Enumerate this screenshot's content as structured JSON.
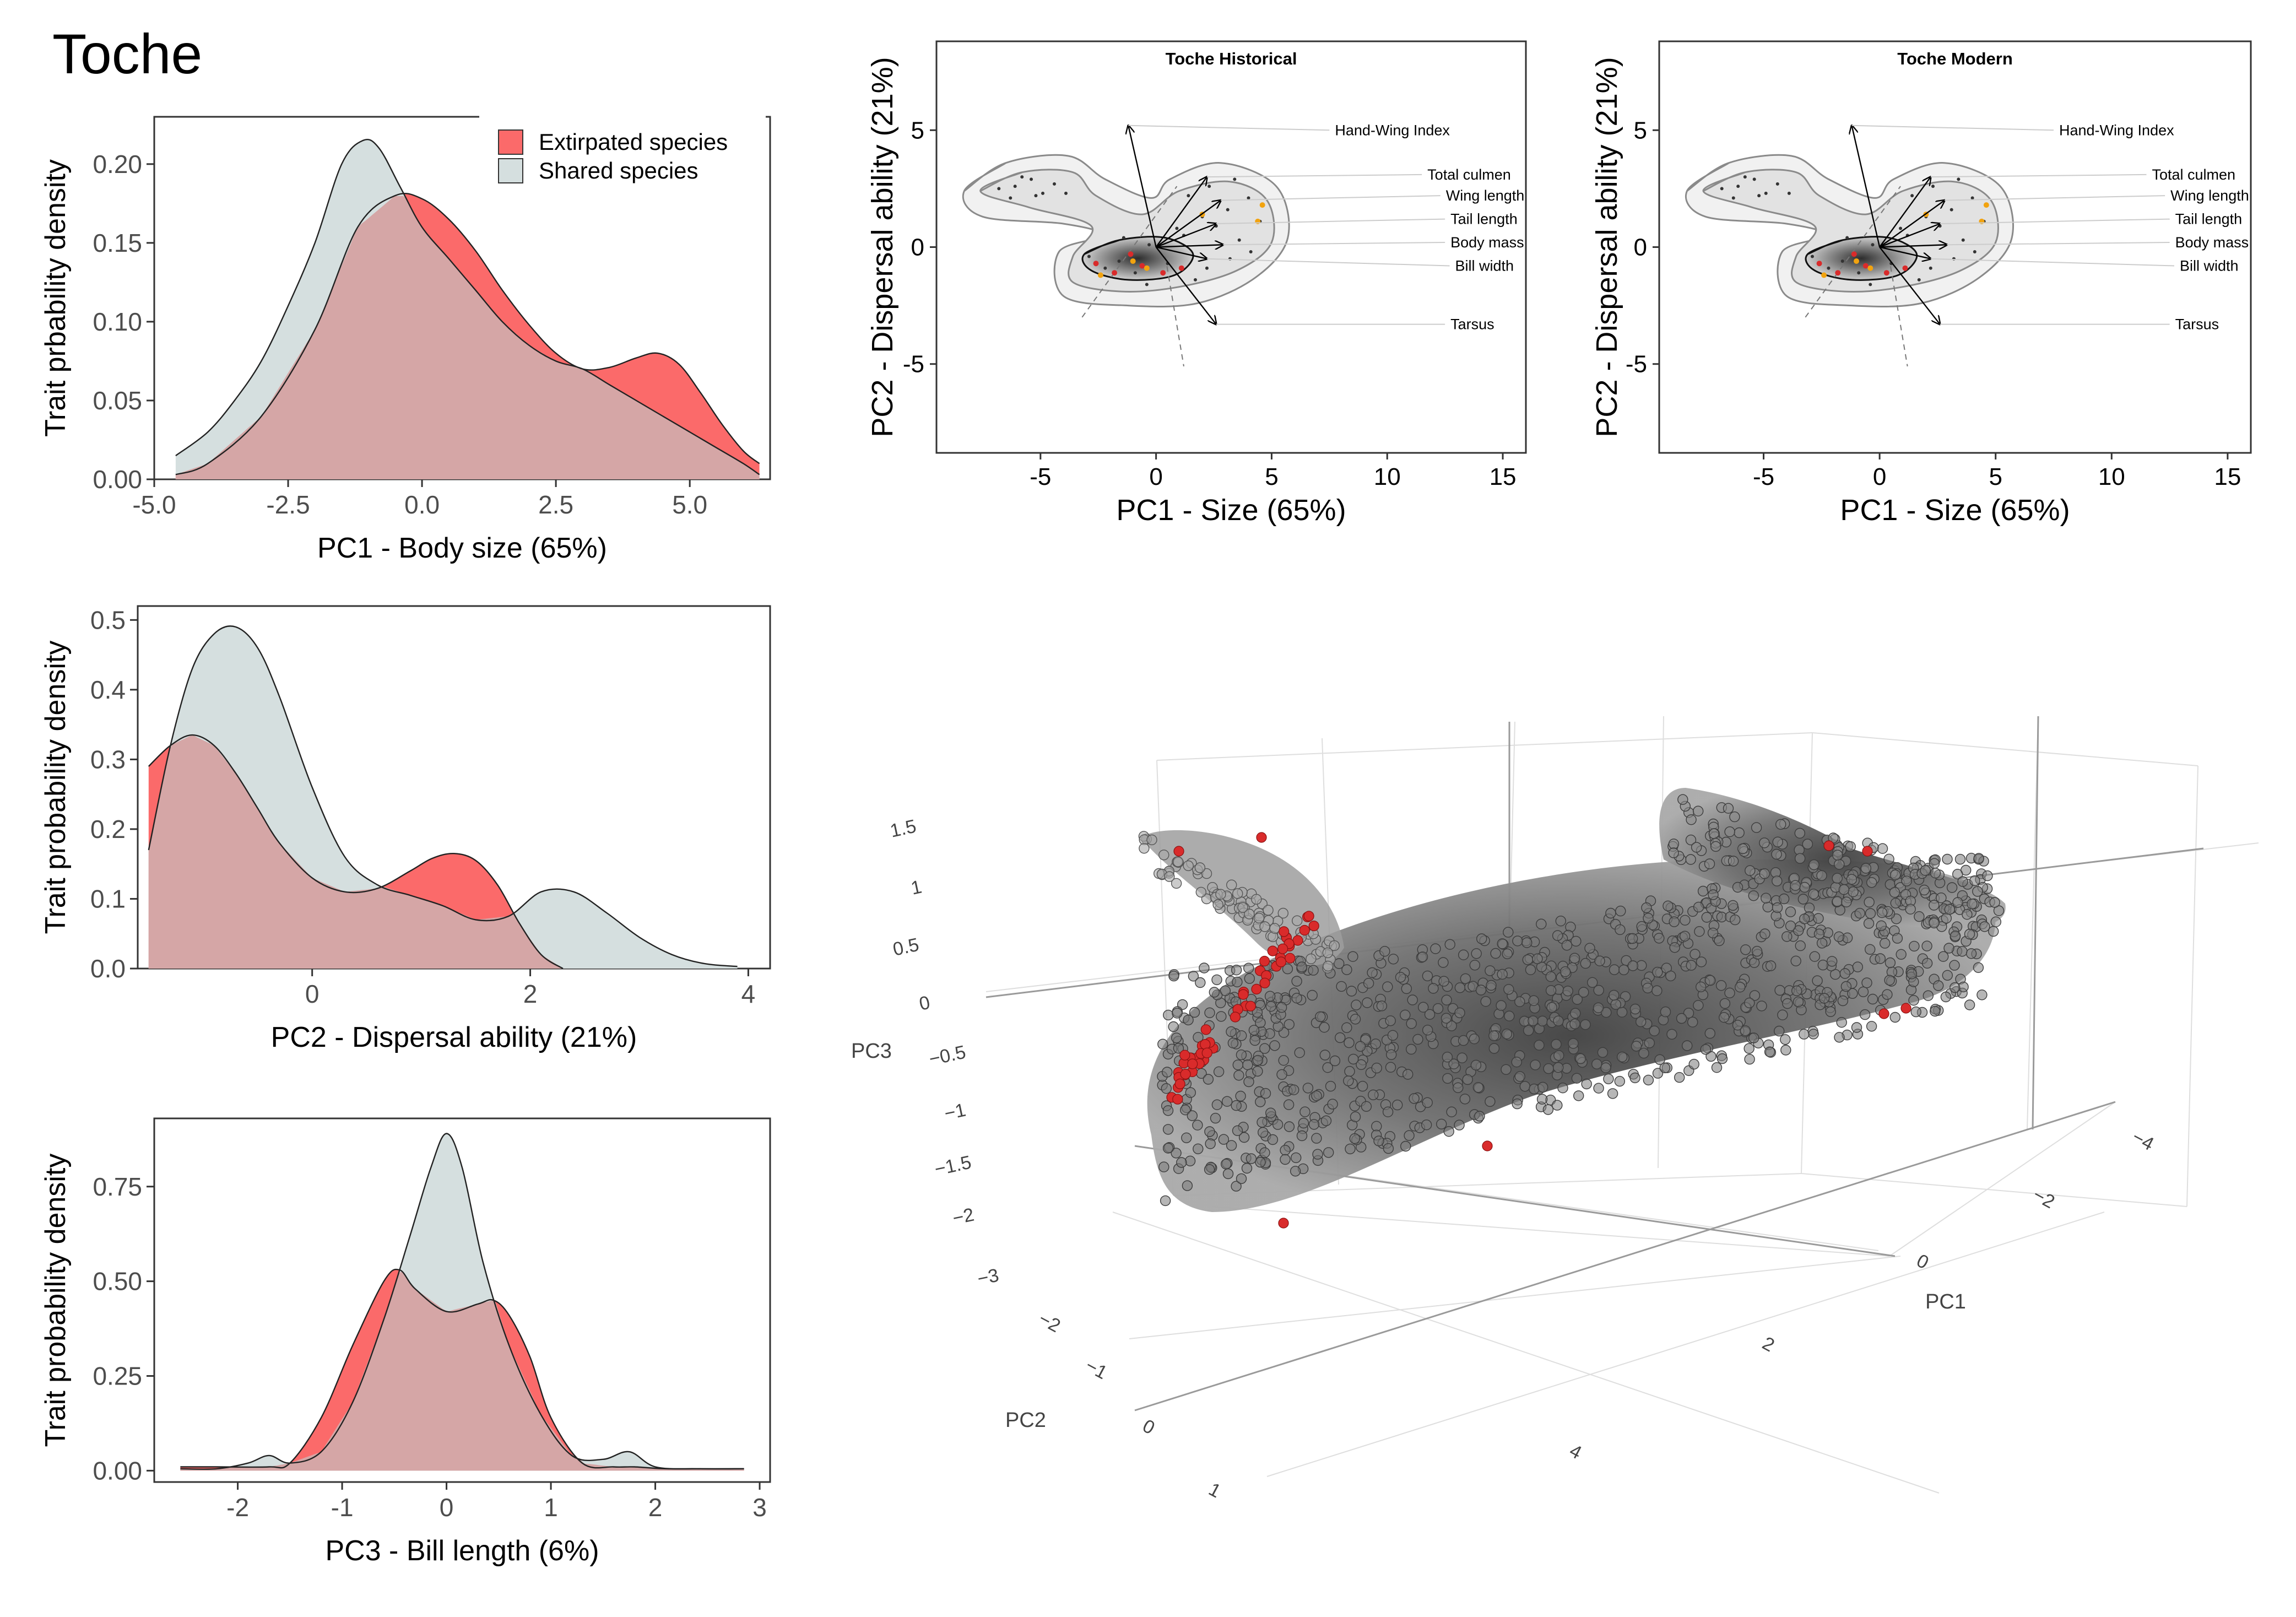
{
  "page_title": "Toche",
  "colors": {
    "extirpated": "#fb6a6a",
    "shared": "#d5dfdf",
    "overlap": "#d5a6a6",
    "outline": "#222222",
    "contour": "#8a8a8a",
    "point_grey": "#6b6b6b",
    "point_red": "#d92b2b",
    "point_orange": "#f2a30f"
  },
  "chart_data": [
    {
      "id": "density-pc1",
      "type": "area",
      "title": "",
      "xlabel": "PC1 - Body size (65%)",
      "ylabel": "Trait prbability density",
      "xlim": [
        -5.0,
        6.5
      ],
      "ylim": [
        0,
        0.23
      ],
      "xticks": [
        -5.0,
        -2.5,
        0.0,
        2.5,
        5.0
      ],
      "xtick_labels": [
        "-5.0",
        "-2.5",
        "0.0",
        "2.5",
        "5.0"
      ],
      "yticks": [
        0,
        0.05,
        0.1,
        0.15,
        0.2
      ],
      "ytick_labels": [
        "0.00",
        "0.05",
        "0.10",
        "0.15",
        "0.20"
      ],
      "legend": {
        "placement": "top-right",
        "entries": [
          {
            "label": "Extirpated species",
            "color_key": "extirpated"
          },
          {
            "label": "Shared species",
            "color_key": "shared"
          }
        ]
      },
      "series": [
        {
          "name": "Extirpated species",
          "x": [
            -4.6,
            -4.0,
            -3.0,
            -2.0,
            -1.2,
            -0.5,
            0,
            0.5,
            1.0,
            1.5,
            2.0,
            2.5,
            3.0,
            3.5,
            4.0,
            4.4,
            4.8,
            5.2,
            5.6,
            6.0,
            6.3
          ],
          "y": [
            0.003,
            0.01,
            0.04,
            0.095,
            0.16,
            0.18,
            0.178,
            0.165,
            0.145,
            0.12,
            0.098,
            0.08,
            0.07,
            0.071,
            0.077,
            0.08,
            0.073,
            0.055,
            0.035,
            0.018,
            0.01
          ]
        },
        {
          "name": "Shared species",
          "x": [
            -4.6,
            -4.0,
            -3.5,
            -3.0,
            -2.5,
            -2.0,
            -1.5,
            -1.1,
            -0.8,
            -0.4,
            0,
            0.5,
            1.0,
            1.5,
            2.0,
            2.5,
            3.0,
            3.5,
            4.0,
            4.5,
            5.0,
            5.5,
            6.0,
            6.3
          ],
          "y": [
            0.015,
            0.03,
            0.05,
            0.075,
            0.11,
            0.15,
            0.2,
            0.215,
            0.21,
            0.185,
            0.16,
            0.14,
            0.12,
            0.1,
            0.085,
            0.075,
            0.07,
            0.06,
            0.05,
            0.04,
            0.03,
            0.02,
            0.01,
            0.003
          ]
        }
      ]
    },
    {
      "id": "density-pc2",
      "type": "area",
      "title": "",
      "xlabel": "PC2 - Dispersal ability (21%)",
      "ylabel": "Trait probability density",
      "xlim": [
        -1.6,
        4.2
      ],
      "ylim": [
        0,
        0.52
      ],
      "xticks": [
        0,
        2,
        4
      ],
      "xtick_labels": [
        "0",
        "2",
        "4"
      ],
      "yticks": [
        0,
        0.1,
        0.2,
        0.3,
        0.4,
        0.5
      ],
      "ytick_labels": [
        "0.0",
        "0.1",
        "0.2",
        "0.3",
        "0.4",
        "0.5"
      ],
      "series": [
        {
          "name": "Extirpated species",
          "x": [
            -1.5,
            -1.3,
            -1.1,
            -0.9,
            -0.7,
            -0.5,
            -0.3,
            0,
            0.3,
            0.6,
            0.9,
            1.1,
            1.3,
            1.5,
            1.7,
            1.9,
            2.1,
            2.3
          ],
          "y": [
            0.29,
            0.32,
            0.335,
            0.32,
            0.28,
            0.23,
            0.18,
            0.13,
            0.11,
            0.115,
            0.14,
            0.158,
            0.165,
            0.155,
            0.12,
            0.065,
            0.02,
            0.0
          ]
        },
        {
          "name": "Shared species",
          "x": [
            -1.5,
            -1.3,
            -1.1,
            -0.9,
            -0.7,
            -0.5,
            -0.3,
            0,
            0.3,
            0.6,
            0.9,
            1.2,
            1.5,
            1.8,
            2.1,
            2.4,
            2.7,
            3.0,
            3.3,
            3.6,
            3.9
          ],
          "y": [
            0.17,
            0.32,
            0.43,
            0.48,
            0.49,
            0.46,
            0.39,
            0.26,
            0.16,
            0.12,
            0.105,
            0.09,
            0.07,
            0.075,
            0.11,
            0.11,
            0.08,
            0.045,
            0.02,
            0.007,
            0.003
          ]
        }
      ]
    },
    {
      "id": "density-pc3",
      "type": "area",
      "title": "",
      "xlabel": "PC3 - Bill length (6%)",
      "ylabel": "Trait probability density",
      "xlim": [
        -2.8,
        3.1
      ],
      "ylim": [
        -0.03,
        0.93
      ],
      "xticks": [
        -2,
        -1,
        0,
        1,
        2,
        3
      ],
      "xtick_labels": [
        "-2",
        "-1",
        "0",
        "1",
        "2",
        "3"
      ],
      "yticks": [
        0,
        0.25,
        0.5,
        0.75
      ],
      "ytick_labels": [
        "0.00",
        "0.25",
        "0.50",
        "0.75"
      ],
      "series": [
        {
          "name": "Extirpated species",
          "x": [
            -2.55,
            -2.2,
            -1.7,
            -1.5,
            -1.2,
            -0.9,
            -0.6,
            -0.45,
            -0.3,
            0,
            0.3,
            0.45,
            0.6,
            0.8,
            1.0,
            1.3,
            1.6,
            1.8,
            2.1,
            2.5,
            2.85
          ],
          "y": [
            0.01,
            0.01,
            0.01,
            0.02,
            0.14,
            0.33,
            0.5,
            0.53,
            0.48,
            0.42,
            0.44,
            0.45,
            0.41,
            0.3,
            0.14,
            0.02,
            0.01,
            0.01,
            0.005,
            0.005,
            0.005
          ]
        },
        {
          "name": "Shared species",
          "x": [
            -2.55,
            -2.2,
            -1.9,
            -1.7,
            -1.5,
            -1.2,
            -0.9,
            -0.6,
            -0.35,
            -0.15,
            0,
            0.15,
            0.35,
            0.6,
            0.9,
            1.2,
            1.5,
            1.75,
            2.0,
            2.4,
            2.85
          ],
          "y": [
            0.005,
            0.005,
            0.02,
            0.04,
            0.02,
            0.05,
            0.18,
            0.4,
            0.62,
            0.8,
            0.89,
            0.8,
            0.55,
            0.33,
            0.15,
            0.04,
            0.03,
            0.05,
            0.01,
            0.005,
            0.005
          ]
        }
      ]
    },
    {
      "id": "pca-historical",
      "type": "scatter",
      "title": "Toche Historical",
      "xlabel": "PC1 - Size (65%)",
      "ylabel": "PC2 - Dispersal ability (21%)",
      "xlim": [
        -9.5,
        16
      ],
      "ylim": [
        -8.8,
        8.8
      ],
      "xticks": [
        -5,
        0,
        5,
        10,
        15
      ],
      "xtick_labels": [
        "-5",
        "0",
        "5",
        "10",
        "15"
      ],
      "yticks": [
        -5,
        0,
        5
      ],
      "ytick_labels": [
        "-5",
        "0",
        "5"
      ],
      "loadings": [
        {
          "label": "Hand-Wing Index",
          "x": -1.2,
          "y": 5.2
        },
        {
          "label": "Total culmen",
          "x": 2.2,
          "y": 3.0
        },
        {
          "label": "Wing length",
          "x": 2.8,
          "y": 2.0
        },
        {
          "label": "Tail length",
          "x": 2.6,
          "y": 1.0
        },
        {
          "label": "Body mass",
          "x": 2.9,
          "y": 0.1
        },
        {
          "label": "Bill width",
          "x": 2.2,
          "y": -0.5
        },
        {
          "label": "Tarsus",
          "x": 2.6,
          "y": -3.3
        }
      ]
    },
    {
      "id": "pca-modern",
      "type": "scatter",
      "title": "Toche Modern",
      "xlabel": "PC1 - Size (65%)",
      "ylabel": "PC2 - Dispersal ability (21%)",
      "xlim": [
        -9.5,
        16
      ],
      "ylim": [
        -8.8,
        8.8
      ],
      "xticks": [
        -5,
        0,
        5,
        10,
        15
      ],
      "xtick_labels": [
        "-5",
        "0",
        "5",
        "10",
        "15"
      ],
      "yticks": [
        -5,
        0,
        5
      ],
      "ytick_labels": [
        "-5",
        "0",
        "5"
      ],
      "loadings": [
        {
          "label": "Hand-Wing Index",
          "x": -1.2,
          "y": 5.2
        },
        {
          "label": "Total culmen",
          "x": 2.2,
          "y": 3.0
        },
        {
          "label": "Wing length",
          "x": 2.8,
          "y": 2.0
        },
        {
          "label": "Tail length",
          "x": 2.6,
          "y": 1.0
        },
        {
          "label": "Body mass",
          "x": 2.9,
          "y": 0.1
        },
        {
          "label": "Bill width",
          "x": 2.2,
          "y": -0.5
        },
        {
          "label": "Tarsus",
          "x": 2.6,
          "y": -3.3
        }
      ]
    },
    {
      "id": "scatter-3d",
      "type": "scatter",
      "title": "",
      "axis_titles": {
        "x": "PC1",
        "y": "PC2",
        "z": "PC3"
      },
      "pc3_tick_labels": [
        "1.5",
        "1",
        "0.5",
        "0",
        "−0.5",
        "−1",
        "−1.5",
        "−2",
        "−3"
      ],
      "pc2_tick_labels": [
        "−2",
        "−1",
        "0",
        "1"
      ],
      "pc1_tick_labels": [
        "−4",
        "−2",
        "0",
        "2",
        "4"
      ]
    }
  ]
}
